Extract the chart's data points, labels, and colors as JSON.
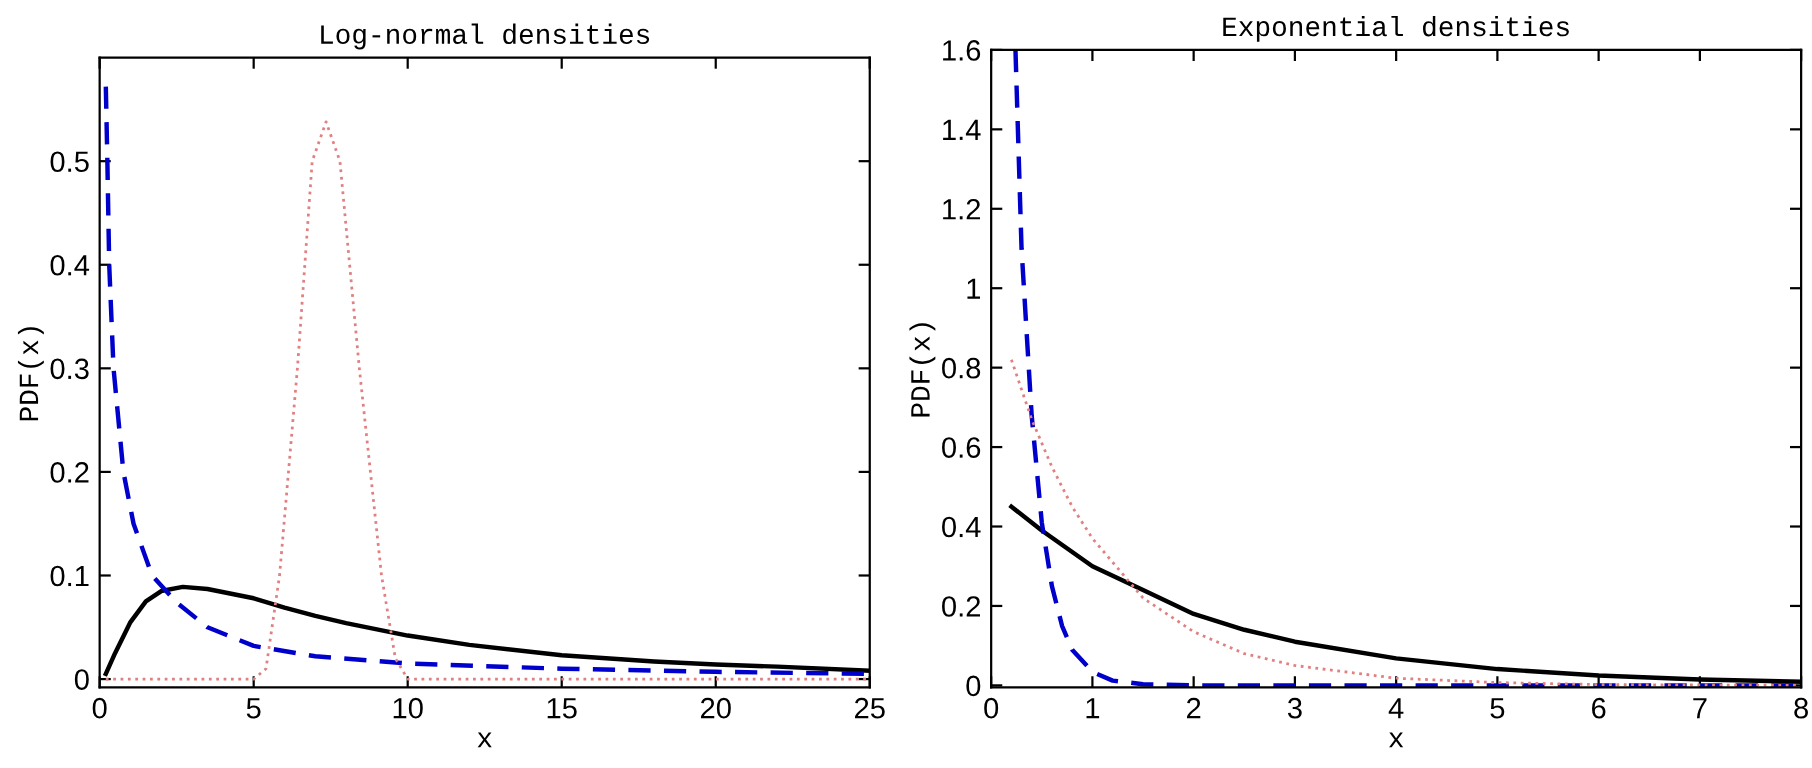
{
  "chart_data": [
    {
      "type": "line",
      "title": "Log-normal densities",
      "xlabel": "x",
      "ylabel": "PDF(x)",
      "xlim": [
        0,
        25
      ],
      "ylim": [
        -0.008,
        0.6
      ],
      "xticks": [
        0,
        5,
        10,
        15,
        20,
        25
      ],
      "yticks": [
        0,
        0.1,
        0.2,
        0.3,
        0.4,
        0.5
      ],
      "grid": false,
      "legend": false,
      "series": [
        {
          "color": "#000000",
          "line_style": "solid",
          "x": [
            0.2,
            0.5,
            1,
            1.5,
            2,
            2.7,
            3.5,
            5,
            6,
            7,
            8,
            10,
            12,
            15,
            18,
            20,
            22,
            25
          ],
          "values": [
            0.005,
            0.025,
            0.055,
            0.075,
            0.085,
            0.089,
            0.087,
            0.078,
            0.069,
            0.061,
            0.054,
            0.042,
            0.033,
            0.023,
            0.017,
            0.014,
            0.012,
            0.008
          ]
        },
        {
          "color": "#0000cc",
          "line_style": "dashed",
          "x": [
            0.2,
            0.25,
            0.31,
            0.45,
            0.77,
            1.1,
            1.7,
            2.5,
            3.5,
            5,
            7,
            10,
            15,
            20,
            25
          ],
          "values": [
            0.572,
            0.5,
            0.4,
            0.3,
            0.2,
            0.15,
            0.1,
            0.074,
            0.05,
            0.032,
            0.022,
            0.015,
            0.01,
            0.007,
            0.005
          ]
        },
        {
          "color": "#e08080",
          "line_style": "dotted",
          "x": [
            0.2,
            5,
            5.4,
            5.84,
            6.42,
            6.9,
            7.35,
            7.8,
            8.43,
            9.15,
            9.6,
            10,
            25
          ],
          "values": [
            0,
            0,
            0.01,
            0.1,
            0.3,
            0.5,
            0.538,
            0.5,
            0.3,
            0.1,
            0.02,
            0,
            0
          ]
        }
      ]
    },
    {
      "type": "line",
      "title": "Exponential densities",
      "xlabel": "x",
      "ylabel": "PDF(x)",
      "xlim": [
        0,
        8
      ],
      "ylim": [
        -0.005,
        1.6
      ],
      "xticks": [
        0,
        1,
        2,
        3,
        4,
        5,
        6,
        7,
        8
      ],
      "yticks": [
        0,
        0.2,
        0.4,
        0.6,
        0.8,
        1,
        1.2,
        1.4,
        1.6
      ],
      "grid": false,
      "legend": false,
      "series": [
        {
          "color": "#000000",
          "line_style": "solid",
          "x": [
            0.2,
            0.5,
            1,
            1.5,
            2,
            2.5,
            3,
            4,
            5,
            6,
            7,
            8
          ],
          "values": [
            0.45,
            0.39,
            0.3,
            0.24,
            0.18,
            0.14,
            0.11,
            0.068,
            0.041,
            0.025,
            0.015,
            0.009
          ]
        },
        {
          "color": "#0000cc",
          "line_style": "dashed",
          "x": [
            0.24,
            0.3,
            0.4,
            0.5,
            0.6,
            0.7,
            0.8,
            1,
            1.2,
            1.5,
            2,
            8
          ],
          "values": [
            1.6,
            1.1,
            0.68,
            0.41,
            0.25,
            0.15,
            0.09,
            0.034,
            0.012,
            0.003,
            0,
            0
          ]
        },
        {
          "color": "#e08080",
          "line_style": "dotted",
          "x": [
            0.2,
            0.4,
            0.6,
            0.8,
            1,
            1.5,
            2,
            2.5,
            3,
            4,
            5,
            6,
            8
          ],
          "values": [
            0.82,
            0.67,
            0.55,
            0.45,
            0.37,
            0.22,
            0.135,
            0.08,
            0.05,
            0.018,
            0.007,
            0.002,
            0
          ]
        }
      ]
    }
  ]
}
